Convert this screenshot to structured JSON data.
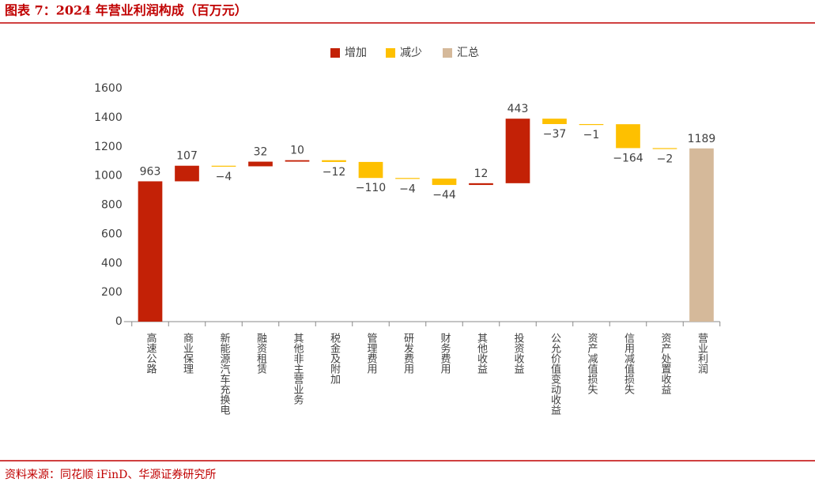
{
  "chart_data": {
    "type": "waterfall",
    "title": "图表 7：2024 年营业利润构成（百万元）",
    "source": "资料来源：同花顺 iFinD、华源证券研究所",
    "legend": [
      {
        "name": "增加",
        "color": "#c32106"
      },
      {
        "name": "减少",
        "color": "#fec000"
      },
      {
        "name": "汇总",
        "color": "#d5b99a"
      }
    ],
    "categories": [
      "高速公路",
      "商业保理",
      "新能源汽车充换电",
      "融资租赁",
      "其他非主营业务",
      "税金及附加",
      "管理费用",
      "研发费用",
      "财务费用",
      "其他收益",
      "投资收益",
      "公允价值变动收益",
      "资产减值损失",
      "信用减值损失",
      "资产处置收益",
      "营业利润"
    ],
    "values": [
      963,
      107,
      -4,
      32,
      10,
      -12,
      -110,
      -4,
      -44,
      12,
      443,
      -37,
      -1,
      -164,
      -2,
      1189
    ],
    "value_labels": [
      "963",
      "107",
      "−4",
      "32",
      "10",
      "−12",
      "−110",
      "−4",
      "−44",
      "12",
      "443",
      "−37",
      "−1",
      "−164",
      "−2",
      "1189"
    ],
    "ylim": [
      0,
      1600
    ],
    "yticks": [
      0,
      200,
      400,
      600,
      800,
      1000,
      1200,
      1400,
      1600
    ],
    "grid": false
  }
}
